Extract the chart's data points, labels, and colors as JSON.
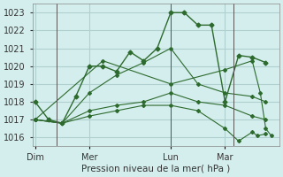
{
  "title": "Pression niveau de la mer( hPa )",
  "background_color": "#d4eeed",
  "grid_color": "#b0d0d0",
  "line_color": "#2d6a2d",
  "yticks": [
    1016,
    1017,
    1018,
    1019,
    1020,
    1021,
    1022,
    1023
  ],
  "ylim": [
    1015.5,
    1023.5
  ],
  "xtick_labels": [
    "Dim",
    "Mer",
    "Lun",
    "Mar"
  ],
  "xtick_positions": [
    0,
    2,
    5,
    7
  ],
  "xlim": [
    -0.1,
    9.0
  ],
  "series": [
    {
      "x": [
        0,
        0.5,
        1.0,
        1.5,
        2.0,
        2.5,
        3.0,
        3.5,
        4.0,
        4.5,
        5.0,
        5.5,
        6.0,
        6.5,
        7.0,
        7.5,
        8.0,
        8.5
      ],
      "y": [
        1018.0,
        1017.0,
        1016.8,
        1018.3,
        1020.0,
        1020.0,
        1019.7,
        1020.8,
        1020.3,
        1021.0,
        1023.0,
        1023.0,
        1022.3,
        1022.3,
        1018.0,
        1020.6,
        1020.5,
        1020.2
      ]
    },
    {
      "x": [
        0,
        1.0,
        2.0,
        3.0,
        4.0,
        5.0,
        6.0,
        7.0,
        8.0,
        8.5
      ],
      "y": [
        1017.0,
        1016.8,
        1018.5,
        1019.5,
        1020.2,
        1021.0,
        1019.0,
        1018.5,
        1018.3,
        1018.0
      ]
    },
    {
      "x": [
        0,
        1.0,
        2.0,
        3.0,
        4.0,
        5.0,
        6.0,
        7.0,
        8.0,
        8.5
      ],
      "y": [
        1017.0,
        1016.8,
        1017.5,
        1017.8,
        1018.0,
        1018.5,
        1018.0,
        1017.8,
        1017.2,
        1017.0
      ]
    },
    {
      "x": [
        0,
        1.0,
        2.0,
        3.0,
        4.0,
        5.0,
        6.0,
        7.0,
        7.5,
        8.0,
        8.2,
        8.5
      ],
      "y": [
        1017.0,
        1016.8,
        1017.2,
        1017.5,
        1017.8,
        1017.8,
        1017.5,
        1016.5,
        1015.8,
        1016.3,
        1016.1,
        1016.2
      ]
    },
    {
      "x": [
        0,
        2.5,
        5.0,
        7.0,
        8.0,
        8.3,
        8.5,
        8.7
      ],
      "y": [
        1017.0,
        1020.3,
        1019.0,
        1019.8,
        1020.3,
        1018.5,
        1016.5,
        1016.1
      ]
    }
  ],
  "vlines": [
    0.8,
    5.0,
    7.3
  ]
}
